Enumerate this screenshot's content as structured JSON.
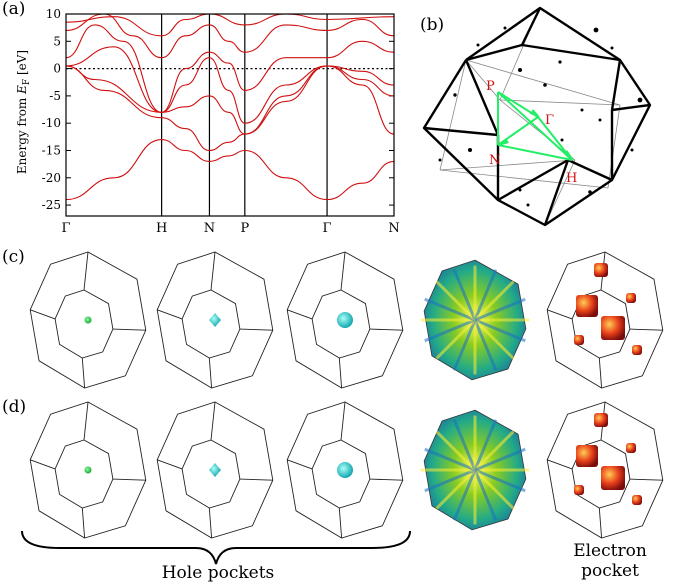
{
  "panels": {
    "a": "(a)",
    "b": "(b)",
    "c": "(c)",
    "d": "(d)"
  },
  "band_plot": {
    "ylabel_main": "Energy from ",
    "ylabel_sym": "E",
    "ylabel_sub": "F",
    "ylabel_unit": " [eV]",
    "yticks": [
      10,
      5,
      0,
      -5,
      -10,
      -15,
      -20,
      -25
    ],
    "kpoints": [
      "Γ",
      "H",
      "N",
      "P",
      "Γ",
      "N"
    ],
    "kpos": [
      0,
      1,
      1.5,
      1.87,
      2.73,
      3.43
    ],
    "ylim": [
      -27,
      10
    ],
    "fermi_level": 0,
    "band_color": "#d01010"
  },
  "bz": {
    "labels": [
      "P",
      "Γ",
      "N",
      "H"
    ],
    "path_color": "#22ee66",
    "label_color": "#d01010"
  },
  "captions": {
    "hole": "Hole pockets",
    "electron_l1": "Electron",
    "electron_l2": "pocket"
  }
}
